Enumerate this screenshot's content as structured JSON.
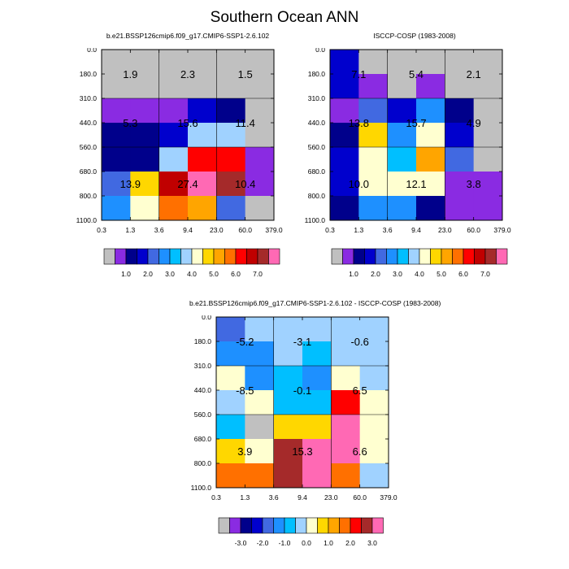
{
  "figure": {
    "title": "Southern Ocean ANN"
  },
  "colors": {
    "abs": [
      "#c0c0c0",
      "#8a2be2",
      "#00008b",
      "#0000cd",
      "#4169e1",
      "#1e90ff",
      "#00bfff",
      "#a0d2ff",
      "#ffffd0",
      "#ffd700",
      "#ffa500",
      "#ff7000",
      "#ff0000",
      "#c00000",
      "#a52a2a",
      "#ff69b4"
    ],
    "diff": [
      "#c0c0c0",
      "#8a2be2",
      "#00008b",
      "#0000cd",
      "#4169e1",
      "#1e90ff",
      "#00bfff",
      "#a0d2ff",
      "#ffffd0",
      "#ffd700",
      "#ffa500",
      "#ff7000",
      "#ff0000",
      "#a52a2a",
      "#ff69b4"
    ]
  },
  "chart_data": [
    {
      "type": "heatmap",
      "title": "b.e21.BSSP126cmip6.f09_g17.CMIP6-SSP1-2.6.102",
      "xticks": [
        "0.3",
        "1.3",
        "3.6",
        "9.4",
        "23.0",
        "60.0",
        "379.0"
      ],
      "yticks": [
        "0.0",
        "180.0",
        "310.0",
        "440.0",
        "560.0",
        "680.0",
        "800.0",
        "1100.0"
      ],
      "cells": [
        [
          0,
          0,
          0,
          0,
          0,
          0
        ],
        [
          0,
          0,
          0,
          0,
          0,
          0
        ],
        [
          1,
          1,
          1,
          3,
          2,
          0
        ],
        [
          2,
          2,
          3,
          7,
          7,
          0
        ],
        [
          2,
          2,
          7,
          12,
          12,
          1
        ],
        [
          4,
          9,
          13,
          15,
          14,
          1
        ],
        [
          5,
          8,
          11,
          10,
          4,
          0
        ]
      ],
      "block_labels": [
        [
          "1.9",
          "2.3",
          "1.5"
        ],
        [
          "5.3",
          "15.6",
          "11.4"
        ],
        [
          "13.9",
          "27.4",
          "10.4"
        ]
      ],
      "colorbar_labels": [
        "1.0",
        "2.0",
        "3.0",
        "4.0",
        "5.0",
        "6.0",
        "7.0"
      ]
    },
    {
      "type": "heatmap",
      "title": "ISCCP-COSP (1983-2008)",
      "xticks": [
        "0.3",
        "1.3",
        "3.6",
        "9.4",
        "23.0",
        "60.0",
        "379.0"
      ],
      "yticks": [
        "0.0",
        "180.0",
        "310.0",
        "440.0",
        "560.0",
        "680.0",
        "800.0",
        "1100.0"
      ],
      "cells": [
        [
          3,
          0,
          0,
          0,
          0,
          0
        ],
        [
          3,
          1,
          0,
          1,
          0,
          0
        ],
        [
          1,
          4,
          3,
          5,
          2,
          0
        ],
        [
          2,
          9,
          5,
          8,
          3,
          0
        ],
        [
          3,
          8,
          6,
          10,
          4,
          0
        ],
        [
          3,
          8,
          8,
          8,
          1,
          1
        ],
        [
          2,
          5,
          5,
          2,
          1,
          1
        ]
      ],
      "block_labels": [
        [
          "7.1",
          "5.4",
          "2.1"
        ],
        [
          "13.8",
          "15.7",
          "4.9"
        ],
        [
          "10.0",
          "12.1",
          "3.8"
        ]
      ],
      "colorbar_labels": [
        "1.0",
        "2.0",
        "3.0",
        "4.0",
        "5.0",
        "6.0",
        "7.0"
      ]
    },
    {
      "type": "heatmap",
      "title": "b.e21.BSSP126cmip6.f09_g17.CMIP6-SSP1-2.6.102 - ISCCP-COSP (1983-2008)",
      "xticks": [
        "0.3",
        "1.3",
        "3.6",
        "9.4",
        "23.0",
        "60.0",
        "379.0"
      ],
      "yticks": [
        "0.0",
        "180.0",
        "310.0",
        "440.0",
        "560.0",
        "680.0",
        "800.0",
        "1100.0"
      ],
      "cells": [
        [
          4,
          7,
          7,
          7,
          7,
          7
        ],
        [
          5,
          5,
          7,
          6,
          7,
          7
        ],
        [
          8,
          5,
          6,
          5,
          8,
          7
        ],
        [
          7,
          8,
          6,
          6,
          12,
          8
        ],
        [
          6,
          0,
          9,
          9,
          14,
          8
        ],
        [
          9,
          8,
          13,
          14,
          14,
          8
        ],
        [
          11,
          11,
          13,
          14,
          11,
          7
        ]
      ],
      "block_labels": [
        [
          "-5.2",
          "-3.1",
          "-0.6"
        ],
        [
          "-8.5",
          "-0.1",
          "6.5"
        ],
        [
          "3.9",
          "15.3",
          "6.6"
        ]
      ],
      "colorbar_labels": [
        "-3.0",
        "-2.0",
        "-1.0",
        "0.0",
        "1.0",
        "2.0",
        "3.0"
      ]
    }
  ]
}
